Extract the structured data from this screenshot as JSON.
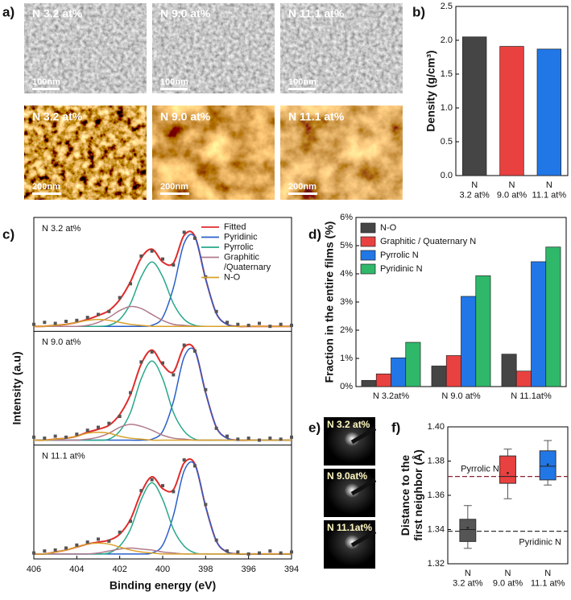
{
  "panel_labels": [
    "a)",
    "b)",
    "c)",
    "d)",
    "e)",
    "f)"
  ],
  "images": {
    "sem": {
      "labels": [
        "N 3.2 at%",
        "N 9.0 at%",
        "N 11.1 at%"
      ],
      "scale_bar": "100nm"
    },
    "afm": {
      "labels": [
        "N 3.2 at%",
        "N 9.0 at%",
        "N 11.1 at%"
      ],
      "scale_bar": "200nm"
    },
    "saed": {
      "labels": [
        "N 3.2 at%",
        "N 9.0at%",
        "N 11.1at%"
      ]
    }
  },
  "chart_data": [
    {
      "type": "bar",
      "ylabel": "Density (g/cm³)",
      "categories": [
        "N\n3.2 at%",
        "N\n9.0 at%",
        "N\n11.1 at%"
      ],
      "values": [
        2.05,
        1.91,
        1.87
      ],
      "colors": [
        "#454545",
        "#e8413f",
        "#2277e6"
      ],
      "ylim": [
        0,
        2.5
      ],
      "yticks": [
        {
          "value": 0,
          "label": "0.0"
        },
        0.5,
        {
          "value": 1,
          "label": "1.0"
        },
        1.5,
        {
          "value": 2,
          "label": "2.0"
        },
        2.5
      ]
    },
    {
      "type": "line",
      "xlabel": "Binding energy (eV)",
      "ylabel": "Intensity (a.u)",
      "x": [
        406,
        405.5,
        405,
        404.5,
        404,
        403.5,
        403,
        402.5,
        402,
        401.5,
        401,
        400.5,
        400,
        399.5,
        399,
        398.5,
        398,
        397.5,
        397,
        396.5,
        396,
        395.5,
        395,
        394.5,
        394
      ],
      "xlim": [
        406,
        394
      ],
      "xticks": [
        406,
        404,
        402,
        400,
        398,
        396,
        394
      ],
      "ylim": [
        -0.05,
        1.1
      ],
      "legend": "upper right",
      "panels": [
        {
          "label": "N 3.2 at%",
          "series": [
            {
              "name": "Fitted",
              "color": "#e02b2b",
              "values": [
                0,
                0,
                0.01,
                0.02,
                0.04,
                0.07,
                0.11,
                0.16,
                0.27,
                0.45,
                0.69,
                0.78,
                0.65,
                0.64,
                0.92,
                0.91,
                0.48,
                0.13,
                0.02,
                0,
                0,
                0,
                0,
                0,
                0
              ]
            },
            {
              "name": "Pyridinic",
              "color": "#2a5fc9",
              "values": [
                0,
                0,
                0,
                0,
                0,
                0,
                0,
                0,
                0,
                0,
                0,
                0.01,
                0.09,
                0.39,
                0.84,
                0.9,
                0.48,
                0.13,
                0.02,
                0,
                0,
                0,
                0,
                0,
                0
              ]
            },
            {
              "name": "Pyrrolic",
              "color": "#27a88a",
              "values": [
                0,
                0,
                0,
                0,
                0,
                0,
                0,
                0.01,
                0.07,
                0.23,
                0.5,
                0.65,
                0.5,
                0.23,
                0.07,
                0.01,
                0,
                0,
                0,
                0,
                0,
                0,
                0,
                0,
                0
              ]
            },
            {
              "name": "Graphitic\n/Quaternary",
              "color": "#b07a8c",
              "values": [
                0,
                0,
                0,
                0,
                0,
                0.01,
                0.04,
                0.09,
                0.16,
                0.2,
                0.18,
                0.12,
                0.06,
                0.02,
                0.01,
                0,
                0,
                0,
                0,
                0,
                0,
                0,
                0,
                0,
                0
              ]
            },
            {
              "name": "N-O",
              "color": "#d9a12a",
              "values": [
                0,
                0,
                0.01,
                0.02,
                0.04,
                0.06,
                0.07,
                0.06,
                0.04,
                0.02,
                0.01,
                0,
                0,
                0,
                0,
                0,
                0,
                0,
                0,
                0,
                0,
                0,
                0,
                0,
                0
              ]
            },
            {
              "color": "#555555",
              "marker": "square",
              "values": [
                0.02,
                0.04,
                0.03,
                0.05,
                0.06,
                0.09,
                0.12,
                0.15,
                0.29,
                0.43,
                0.71,
                0.76,
                0.68,
                0.62,
                0.95,
                0.89,
                0.5,
                0.15,
                0.04,
                0.02,
                0.01,
                0.03,
                0,
                0.02,
                0.01
              ]
            }
          ]
        },
        {
          "label": "N 9.0 at%",
          "series": [
            {
              "name": "Fitted",
              "color": "#e02b2b",
              "values": [
                0,
                0,
                0.01,
                0.02,
                0.04,
                0.08,
                0.11,
                0.15,
                0.26,
                0.46,
                0.77,
                0.91,
                0.76,
                0.69,
                0.94,
                0.91,
                0.48,
                0.13,
                0.02,
                0,
                0,
                0,
                0,
                0,
                0
              ]
            },
            {
              "name": "Pyridinic",
              "color": "#2a5fc9",
              "values": [
                0,
                0,
                0,
                0,
                0,
                0,
                0,
                0,
                0,
                0,
                0,
                0.01,
                0.09,
                0.39,
                0.84,
                0.9,
                0.48,
                0.13,
                0.02,
                0,
                0,
                0,
                0,
                0,
                0
              ]
            },
            {
              "name": "Pyrrolic",
              "color": "#27a88a",
              "values": [
                0,
                0,
                0,
                0,
                0,
                0,
                0,
                0.01,
                0.09,
                0.28,
                0.62,
                0.8,
                0.62,
                0.28,
                0.09,
                0.01,
                0,
                0,
                0,
                0,
                0,
                0,
                0,
                0,
                0
              ]
            },
            {
              "name": "Graphitic\n/Quaternary",
              "color": "#b07a8c",
              "values": [
                0,
                0,
                0,
                0,
                0,
                0.01,
                0.03,
                0.07,
                0.13,
                0.16,
                0.14,
                0.1,
                0.05,
                0.02,
                0.01,
                0,
                0,
                0,
                0,
                0,
                0,
                0,
                0,
                0,
                0
              ]
            },
            {
              "name": "N-O",
              "color": "#d9a12a",
              "values": [
                0,
                0,
                0.01,
                0.02,
                0.04,
                0.07,
                0.08,
                0.07,
                0.04,
                0.02,
                0.01,
                0,
                0,
                0,
                0,
                0,
                0,
                0,
                0,
                0,
                0,
                0,
                0,
                0,
                0
              ]
            },
            {
              "color": "#555555",
              "marker": "square",
              "values": [
                0.03,
                0.02,
                0.04,
                0.03,
                0.06,
                0.1,
                0.13,
                0.17,
                0.24,
                0.48,
                0.79,
                0.89,
                0.78,
                0.66,
                0.96,
                0.9,
                0.51,
                0.12,
                0.04,
                0.01,
                0.02,
                0,
                0.02,
                0.01,
                0.03
              ]
            }
          ]
        },
        {
          "label": "N 11.1 at%",
          "series": [
            {
              "name": "Fitted",
              "color": "#e02b2b",
              "values": [
                0,
                0,
                0.02,
                0.04,
                0.07,
                0.1,
                0.12,
                0.14,
                0.2,
                0.35,
                0.62,
                0.78,
                0.66,
                0.65,
                0.92,
                0.91,
                0.48,
                0.13,
                0.02,
                0,
                0,
                0,
                0,
                0,
                0
              ]
            },
            {
              "name": "Pyridinic",
              "color": "#2a5fc9",
              "values": [
                0,
                0,
                0,
                0,
                0,
                0,
                0,
                0,
                0,
                0,
                0,
                0.01,
                0.09,
                0.39,
                0.84,
                0.9,
                0.48,
                0.13,
                0.02,
                0,
                0,
                0,
                0,
                0,
                0
              ]
            },
            {
              "name": "Pyrrolic",
              "color": "#27a88a",
              "values": [
                0,
                0,
                0,
                0,
                0,
                0,
                0,
                0.01,
                0.08,
                0.25,
                0.55,
                0.72,
                0.55,
                0.25,
                0.08,
                0.01,
                0,
                0,
                0,
                0,
                0,
                0,
                0,
                0,
                0
              ]
            },
            {
              "name": "Graphitic\n/Quaternary",
              "color": "#b07a8c",
              "values": [
                0,
                0,
                0,
                0,
                0,
                0,
                0.01,
                0.03,
                0.05,
                0.06,
                0.05,
                0.04,
                0.02,
                0.01,
                0,
                0,
                0,
                0,
                0,
                0,
                0,
                0,
                0,
                0,
                0
              ]
            },
            {
              "name": "N-O",
              "color": "#d9a12a",
              "values": [
                0,
                0,
                0.02,
                0.04,
                0.07,
                0.1,
                0.11,
                0.1,
                0.07,
                0.04,
                0.02,
                0.01,
                0,
                0,
                0,
                0,
                0,
                0,
                0,
                0,
                0,
                0,
                0,
                0,
                0
              ]
            },
            {
              "color": "#555555",
              "marker": "square",
              "values": [
                0.01,
                0.03,
                0.04,
                0.06,
                0.09,
                0.12,
                0.15,
                0.13,
                0.22,
                0.33,
                0.64,
                0.75,
                0.69,
                0.63,
                0.95,
                0.89,
                0.5,
                0.14,
                0.03,
                0.02,
                0,
                0.01,
                0.03,
                0.01,
                0.02
              ]
            }
          ]
        }
      ]
    },
    {
      "type": "bar",
      "ylabel": "Fraction in the entire films (%)",
      "legend": "upper left",
      "categories": [
        "N 3.2at%",
        "N 9.0 at%",
        "N 11.1at%"
      ],
      "series": [
        {
          "name": "N-O",
          "color": "#454545",
          "values": [
            0.22,
            0.73,
            1.15
          ]
        },
        {
          "name": "Graphitic / Quaternary N",
          "color": "#e8413f",
          "values": [
            0.45,
            1.1,
            0.55
          ]
        },
        {
          "name": "Pyrrolic N",
          "color": "#2277e6",
          "values": [
            1.02,
            3.2,
            4.43
          ]
        },
        {
          "name": "Pyridinic N",
          "color": "#2fb86a",
          "values": [
            1.57,
            3.93,
            4.95
          ]
        }
      ],
      "ylim": [
        0,
        6
      ],
      "yticks": [
        {
          "value": 0,
          "label": "0%"
        },
        {
          "value": 1,
          "label": "1%"
        },
        {
          "value": 2,
          "label": "2%"
        },
        {
          "value": 3,
          "label": "3%"
        },
        {
          "value": 4,
          "label": "4%"
        },
        {
          "value": 5,
          "label": "5%"
        },
        {
          "value": 6,
          "label": "6%"
        }
      ]
    },
    {
      "type": "box",
      "ylabel": "Distance to the\nfirst neighbor (Å)",
      "categories": [
        "N\n3.2 at%",
        "N\n9.0 at%",
        "N\n11.1 at%"
      ],
      "colors": [
        "#555555",
        "#e8413f",
        "#2277e6"
      ],
      "boxes": [
        {
          "whislo": 1.329,
          "q1": 1.333,
          "med": 1.34,
          "q3": 1.346,
          "whishi": 1.354,
          "mean": 1.341
        },
        {
          "whislo": 1.358,
          "q1": 1.367,
          "med": 1.371,
          "q3": 1.383,
          "whishi": 1.387,
          "mean": 1.373
        },
        {
          "whislo": 1.366,
          "q1": 1.369,
          "med": 1.377,
          "q3": 1.386,
          "whishi": 1.392,
          "mean": 1.378
        }
      ],
      "hlines": [
        {
          "value": 1.371,
          "label": "Pyrrolic N",
          "color": "#8b2332"
        },
        {
          "value": 1.339,
          "label": "Pyridinic N",
          "color": "#333333"
        }
      ],
      "ylim": [
        1.32,
        1.4
      ],
      "yticks": [
        1.32,
        1.34,
        1.36,
        1.38,
        {
          "value": 1.4,
          "label": "1.40"
        }
      ]
    }
  ]
}
